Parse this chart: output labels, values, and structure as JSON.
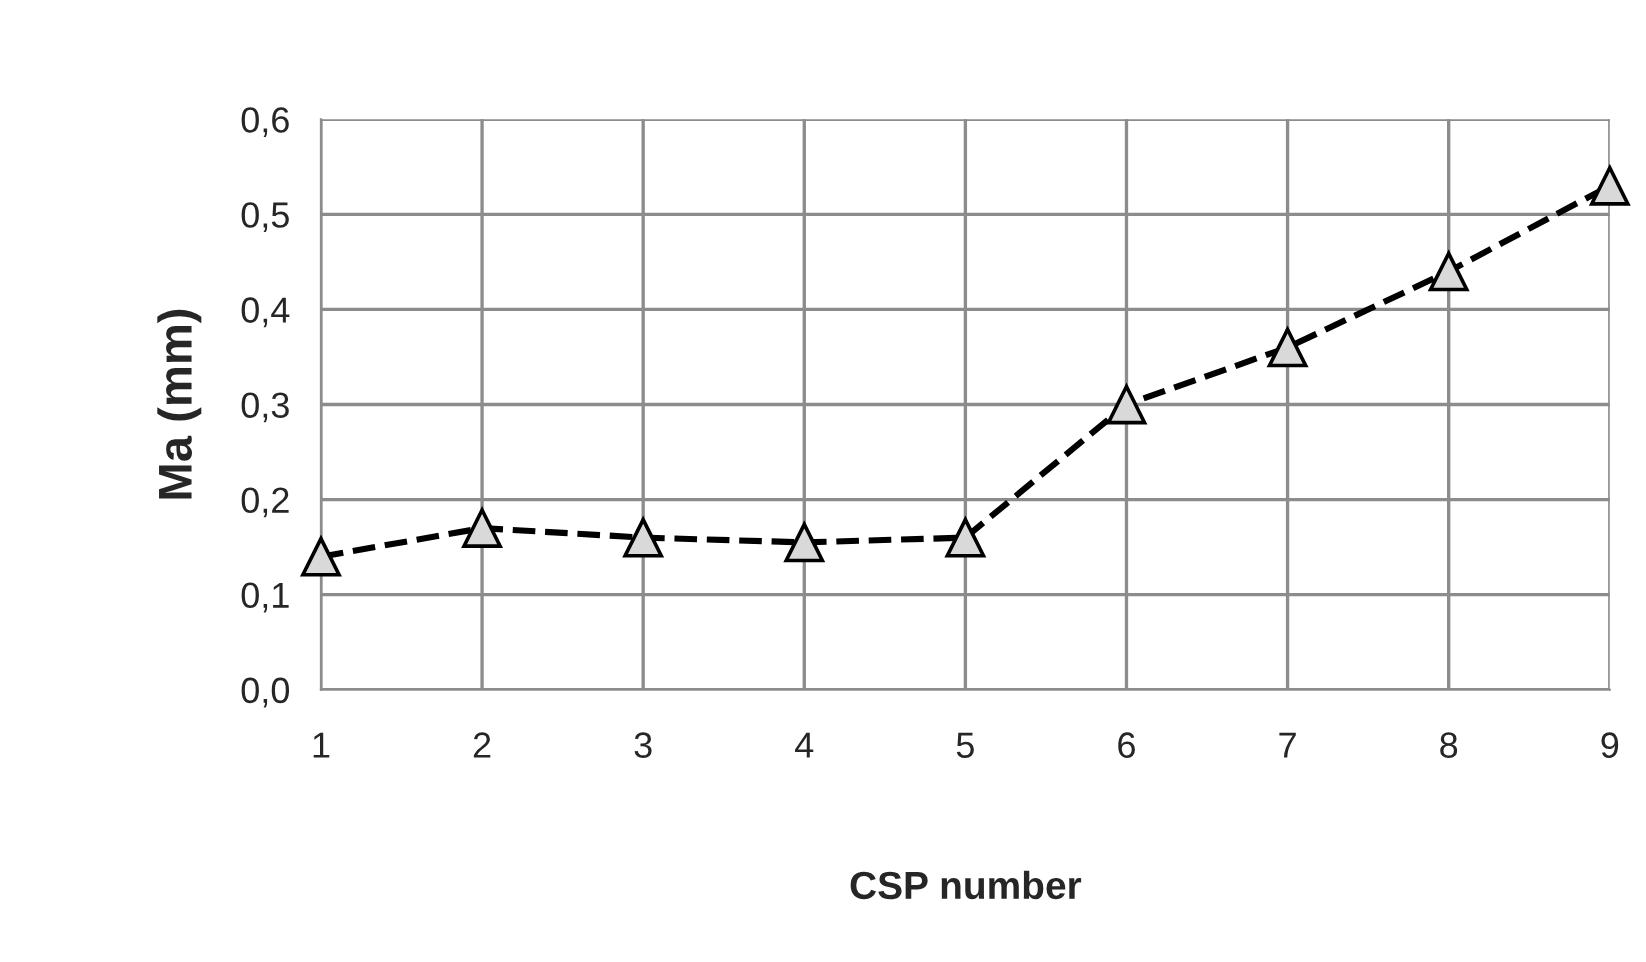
{
  "chart_data": {
    "type": "line",
    "xlabel": "CSP number",
    "ylabel": "Ma (mm)",
    "x": [
      1,
      2,
      3,
      4,
      5,
      6,
      7,
      8,
      9
    ],
    "series": [
      {
        "color": "#000000",
        "values": [
          0.14,
          0.17,
          0.16,
          0.155,
          0.16,
          0.3,
          0.36,
          0.44,
          0.53
        ]
      }
    ],
    "xlim": [
      1,
      9
    ],
    "xticks": [
      1,
      2,
      3,
      4,
      5,
      6,
      7,
      8,
      9
    ],
    "ylim": [
      0,
      0.6
    ],
    "yticks": [
      {
        "value": 0,
        "label": "0,0"
      },
      {
        "value": 0.1,
        "label": "0,1"
      },
      {
        "value": 0.2,
        "label": "0,2"
      },
      {
        "value": 0.3,
        "label": "0,3"
      },
      {
        "value": 0.4,
        "label": "0,4"
      },
      {
        "value": 0.5,
        "label": "0,5"
      },
      {
        "value": 0.6,
        "label": "0,6"
      }
    ],
    "grid": true,
    "marker": "triangle",
    "line_style": "dashed",
    "legend": false
  }
}
